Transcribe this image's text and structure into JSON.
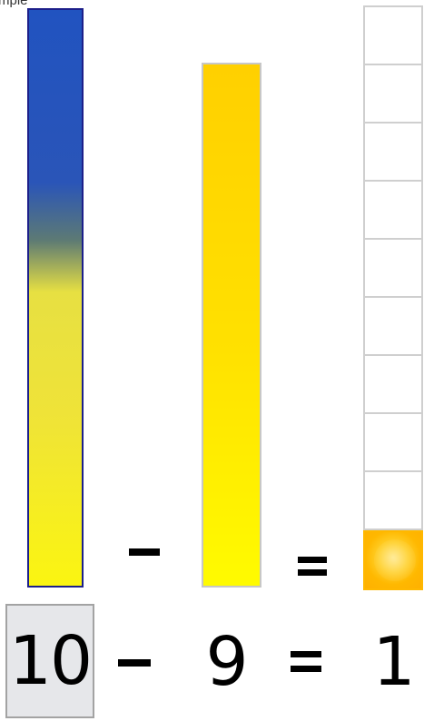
{
  "corner_label": "mple",
  "bars": {
    "minuend_value": 10,
    "subtrahend_value": 9,
    "grid_cells": 10,
    "filled_cells": 1
  },
  "upper_operators": {
    "minus": "−",
    "equals": "="
  },
  "expression": {
    "minuend": "10",
    "minus": "−",
    "subtrahend": "9",
    "equals": "=",
    "result": "1"
  },
  "colors": {
    "blue": "#2153c0",
    "yellow": "#ffe100",
    "tile_orange": "#ffb800",
    "box_gray": "#e6e7ea"
  }
}
